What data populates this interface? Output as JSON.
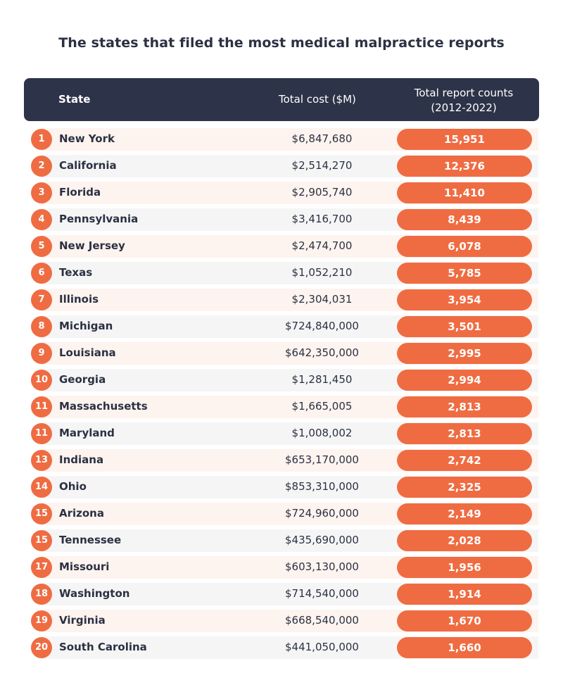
{
  "chart_data": {
    "type": "table",
    "title": "The states that filed the most medical malpractice reports",
    "columns": {
      "state": "State",
      "cost": "Total cost ($M)",
      "count_line1": "Total report counts",
      "count_line2": "(2012-2022)"
    },
    "rows": [
      {
        "rank": "1",
        "state": "New York",
        "cost": "$6,847,680",
        "count": "15,951"
      },
      {
        "rank": "2",
        "state": "California",
        "cost": "$2,514,270",
        "count": "12,376"
      },
      {
        "rank": "3",
        "state": "Florida",
        "cost": "$2,905,740",
        "count": "11,410"
      },
      {
        "rank": "4",
        "state": "Pennsylvania",
        "cost": "$3,416,700",
        "count": "8,439"
      },
      {
        "rank": "5",
        "state": "New Jersey",
        "cost": "$2,474,700",
        "count": "6,078"
      },
      {
        "rank": "6",
        "state": "Texas",
        "cost": "$1,052,210",
        "count": "5,785"
      },
      {
        "rank": "7",
        "state": "Illinois",
        "cost": "$2,304,031",
        "count": "3,954"
      },
      {
        "rank": "8",
        "state": "Michigan",
        "cost": "$724,840,000",
        "count": "3,501"
      },
      {
        "rank": "9",
        "state": "Louisiana",
        "cost": "$642,350,000",
        "count": "2,995"
      },
      {
        "rank": "10",
        "state": "Georgia",
        "cost": "$1,281,450",
        "count": "2,994"
      },
      {
        "rank": "11",
        "state": "Massachusetts",
        "cost": "$1,665,005",
        "count": "2,813"
      },
      {
        "rank": "11",
        "state": "Maryland",
        "cost": "$1,008,002",
        "count": "2,813"
      },
      {
        "rank": "13",
        "state": "Indiana",
        "cost": "$653,170,000",
        "count": "2,742"
      },
      {
        "rank": "14",
        "state": "Ohio",
        "cost": "$853,310,000",
        "count": "2,325"
      },
      {
        "rank": "15",
        "state": "Arizona",
        "cost": "$724,960,000",
        "count": "2,149"
      },
      {
        "rank": "15",
        "state": "Tennessee",
        "cost": "$435,690,000",
        "count": "2,028"
      },
      {
        "rank": "17",
        "state": "Missouri",
        "cost": "$603,130,000",
        "count": "1,956"
      },
      {
        "rank": "18",
        "state": "Washington",
        "cost": "$714,540,000",
        "count": "1,914"
      },
      {
        "rank": "19",
        "state": "Virginia",
        "cost": "$668,540,000",
        "count": "1,670"
      },
      {
        "rank": "20",
        "state": "South Carolina",
        "cost": "$441,050,000",
        "count": "1,660"
      }
    ]
  },
  "colors": {
    "accent": "#ef6c42",
    "header_bg": "#2d3348",
    "text": "#2b3142"
  }
}
